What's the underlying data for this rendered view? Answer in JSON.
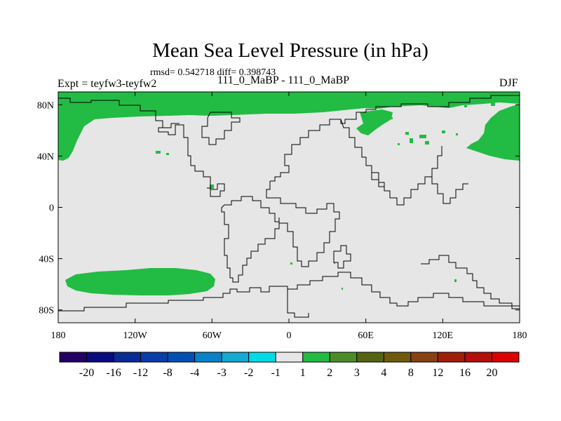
{
  "title": "Mean Sea Level Pressure (in hPa)",
  "stats": "rmsd= 0.542718 diff= 0.398743",
  "experiment": "Expt = teyfw3-teyfw2",
  "runs": "111_0_MaBP - 111_0_MaBP",
  "season": "DJF",
  "map": {
    "lon_range": [
      -180,
      180
    ],
    "lat_range": [
      -90,
      90
    ],
    "background_color": "#e6e6e6",
    "positive_color": "#22bb44",
    "x_tick_labels": [
      "180",
      "120W",
      "60W",
      "0",
      "60E",
      "120E",
      "180"
    ],
    "y_tick_labels": [
      "80N",
      "40N",
      "0",
      "40S",
      "80S"
    ]
  },
  "colorbar": {
    "labels": [
      "-20",
      "-16",
      "-12",
      "-8",
      "-4",
      "-3",
      "-2",
      "-1",
      "1",
      "2",
      "3",
      "4",
      "8",
      "12",
      "16",
      "20"
    ],
    "colors": [
      "#220066",
      "#0a0a80",
      "#0a2a96",
      "#0a3caa",
      "#0050b4",
      "#0a82c8",
      "#14aad2",
      "#00dce6",
      "#e6e6e6",
      "#22bb44",
      "#4b8c28",
      "#556414",
      "#6e5a0a",
      "#874114",
      "#a01e0a",
      "#b40f0a",
      "#dc0000"
    ]
  }
}
